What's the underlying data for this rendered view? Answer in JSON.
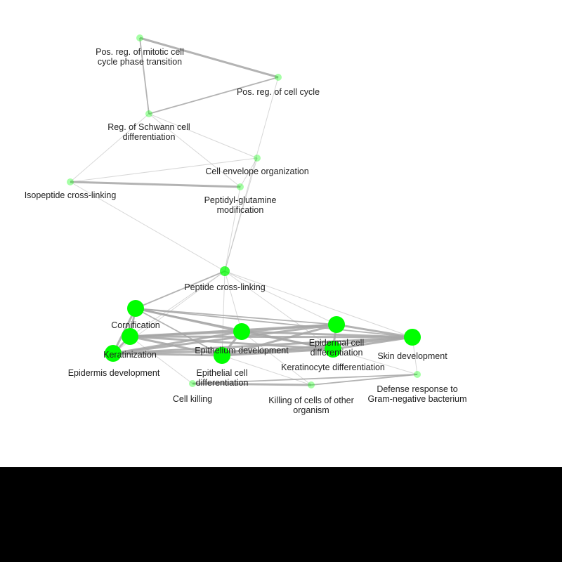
{
  "network": {
    "node_color": "#00ff00",
    "edge_color": "#a6a6a6",
    "nodes": [
      {
        "id": "mitotic",
        "label": [
          "Pos. reg. of mitotic cell",
          "cycle phase transition"
        ],
        "significance": "low"
      },
      {
        "id": "cellcycle",
        "label": [
          "Pos. reg. of cell cycle"
        ],
        "significance": "low"
      },
      {
        "id": "schwann",
        "label": [
          "Reg. of Schwann cell",
          "differentiation"
        ],
        "significance": "low"
      },
      {
        "id": "envelope",
        "label": [
          "Cell envelope organization"
        ],
        "significance": "low"
      },
      {
        "id": "isopeptide",
        "label": [
          "Isopeptide cross-linking"
        ],
        "significance": "low"
      },
      {
        "id": "glutamine",
        "label": [
          "Peptidyl-glutamine",
          "modification"
        ],
        "significance": "low"
      },
      {
        "id": "peptide",
        "label": [
          "Peptide cross-linking"
        ],
        "significance": "medium"
      },
      {
        "id": "cornification",
        "label": [
          "Cornification"
        ],
        "significance": "high"
      },
      {
        "id": "keratinization",
        "label": [
          "Keratinization"
        ],
        "significance": "high"
      },
      {
        "id": "epidermis",
        "label": [
          "Epidermis development"
        ],
        "significance": "high"
      },
      {
        "id": "epithelium",
        "label": [
          "Epithelium development"
        ],
        "significance": "high"
      },
      {
        "id": "epithelialdiff",
        "label": [
          "Epithelial cell",
          "differentiation"
        ],
        "significance": "high"
      },
      {
        "id": "epidermaldiff",
        "label": [
          "Epidermal cell",
          "differentiation"
        ],
        "significance": "high"
      },
      {
        "id": "keratinocyte",
        "label": [
          "Keratinocyte differentiation"
        ],
        "significance": "high"
      },
      {
        "id": "skin",
        "label": [
          "Skin development"
        ],
        "significance": "high"
      },
      {
        "id": "cellkilling",
        "label": [
          "Cell killing"
        ],
        "significance": "low"
      },
      {
        "id": "killingother",
        "label": [
          "Killing of cells of other",
          "organism"
        ],
        "significance": "low"
      },
      {
        "id": "defense",
        "label": [
          "Defense response to",
          "Gram-negative bacterium"
        ],
        "significance": "low"
      }
    ],
    "edges": [
      [
        "mitotic",
        "cellcycle",
        "strong"
      ],
      [
        "mitotic",
        "schwann",
        "medium"
      ],
      [
        "schwann",
        "cellcycle",
        "medium"
      ],
      [
        "cellcycle",
        "peptide",
        "weak"
      ],
      [
        "schwann",
        "isopeptide",
        "weak"
      ],
      [
        "schwann",
        "glutamine",
        "weak"
      ],
      [
        "schwann",
        "envelope",
        "weak"
      ],
      [
        "envelope",
        "isopeptide",
        "weak"
      ],
      [
        "envelope",
        "glutamine",
        "weak"
      ],
      [
        "isopeptide",
        "glutamine",
        "strong"
      ],
      [
        "isopeptide",
        "peptide",
        "weak"
      ],
      [
        "glutamine",
        "peptide",
        "weak"
      ],
      [
        "envelope",
        "peptide",
        "weak"
      ],
      [
        "peptide",
        "cornification",
        "medium"
      ],
      [
        "peptide",
        "keratinization",
        "weak"
      ],
      [
        "peptide",
        "epidermis",
        "weak"
      ],
      [
        "peptide",
        "epithelium",
        "weak"
      ],
      [
        "peptide",
        "epidermaldiff",
        "weak"
      ],
      [
        "peptide",
        "keratinocyte",
        "weak"
      ],
      [
        "peptide",
        "skin",
        "weak"
      ],
      [
        "peptide",
        "epithelialdiff",
        "weak"
      ],
      [
        "cornification",
        "keratinization",
        "strong"
      ],
      [
        "cornification",
        "epidermis",
        "strong"
      ],
      [
        "cornification",
        "epithelium",
        "strong"
      ],
      [
        "cornification",
        "epidermaldiff",
        "medium"
      ],
      [
        "cornification",
        "keratinocyte",
        "medium"
      ],
      [
        "cornification",
        "skin",
        "medium"
      ],
      [
        "cornification",
        "epithelialdiff",
        "medium"
      ],
      [
        "keratinization",
        "epidermis",
        "strong"
      ],
      [
        "keratinization",
        "epithelium",
        "strong"
      ],
      [
        "keratinization",
        "epidermaldiff",
        "strong"
      ],
      [
        "keratinization",
        "keratinocyte",
        "strong"
      ],
      [
        "keratinization",
        "skin",
        "strong"
      ],
      [
        "keratinization",
        "epithelialdiff",
        "strong"
      ],
      [
        "epidermis",
        "epithelium",
        "strong"
      ],
      [
        "epidermis",
        "epidermaldiff",
        "strong"
      ],
      [
        "epidermis",
        "keratinocyte",
        "strong"
      ],
      [
        "epidermis",
        "skin",
        "strong"
      ],
      [
        "epidermis",
        "epithelialdiff",
        "strong"
      ],
      [
        "epithelium",
        "epidermaldiff",
        "strong"
      ],
      [
        "epithelium",
        "keratinocyte",
        "strong"
      ],
      [
        "epithelium",
        "skin",
        "strong"
      ],
      [
        "epithelium",
        "epithelialdiff",
        "strong"
      ],
      [
        "epidermaldiff",
        "keratinocyte",
        "strong"
      ],
      [
        "epidermaldiff",
        "skin",
        "strong"
      ],
      [
        "epidermaldiff",
        "epithelialdiff",
        "strong"
      ],
      [
        "keratinocyte",
        "skin",
        "strong"
      ],
      [
        "keratinocyte",
        "epithelialdiff",
        "strong"
      ],
      [
        "skin",
        "epithelialdiff",
        "strong"
      ],
      [
        "cellkilling",
        "killingother",
        "strong"
      ],
      [
        "cellkilling",
        "defense",
        "medium"
      ],
      [
        "killingother",
        "defense",
        "medium"
      ],
      [
        "epidermis",
        "cellkilling",
        "weak"
      ],
      [
        "epithelialdiff",
        "killingother",
        "weak"
      ],
      [
        "keratinocyte",
        "defense",
        "weak"
      ],
      [
        "skin",
        "defense",
        "weak"
      ],
      [
        "epithelium",
        "killingother",
        "weak"
      ]
    ]
  }
}
